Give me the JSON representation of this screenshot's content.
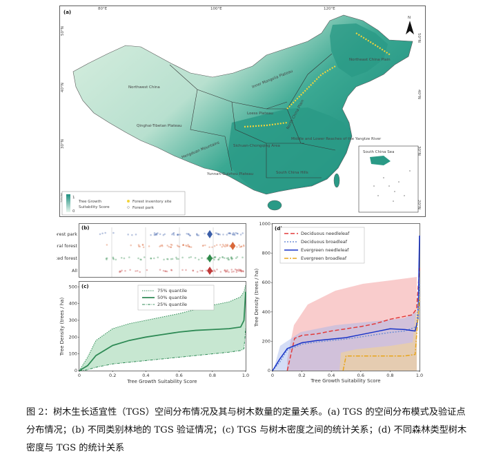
{
  "panel_a": {
    "label": "(a)",
    "lon_ticks": [
      "80°E",
      "100°E",
      "120°E"
    ],
    "lat_ticks": [
      "50°N",
      "40°N",
      "30°N",
      "20°N"
    ],
    "north": "N",
    "regions": [
      "Northwest China",
      "Inner Mongolia Plateau",
      "Northeast China Plain",
      "Loess Plateau",
      "North China Plain",
      "Qinghai-Tibetan Plateau",
      "Hengduan Mountains",
      "Sichuan-Chongqing Area",
      "Middle and Lower Reaches of the Yangtze River",
      "Yunnan-Guizhou Plateau",
      "South China Hills"
    ],
    "inset_label": "South China Sea",
    "legend": {
      "title_line1": "Tree Growth",
      "title_line2": "Suitability Score",
      "max": "1",
      "min": "0",
      "item1": "Forest inventory site",
      "item2": "Forest park"
    },
    "colors": {
      "low": "#d9efe0",
      "high": "#1f8f7f",
      "highlight": "#f2d43a"
    }
  },
  "panel_b": {
    "label": "(b)",
    "rows": [
      "Forest park",
      "Natural forest",
      "Planted forest",
      "All"
    ],
    "row_colors": [
      "#3b5ea8",
      "#d9683a",
      "#2f8a4a",
      "#c03a3a"
    ],
    "median_positions": [
      0.79,
      0.93,
      0.79,
      0.79
    ]
  },
  "chart_data": [
    {
      "type": "area",
      "label": "(c)",
      "xlabel": "Tree Growth Suitability Score",
      "ylabel": "Tree Density (trees / ha)",
      "xlim": [
        0,
        1
      ],
      "ylim": [
        0,
        530
      ],
      "x_ticks": [
        "0",
        "0.2",
        "0.4",
        "0.6",
        "0.8",
        "1.0"
      ],
      "y_ticks": [
        "0",
        "100",
        "200",
        "300",
        "400",
        "500"
      ],
      "x": [
        0,
        0.05,
        0.1,
        0.2,
        0.3,
        0.4,
        0.5,
        0.6,
        0.7,
        0.8,
        0.9,
        0.97,
        0.99,
        1.0
      ],
      "series": [
        {
          "name": "75% quantile",
          "values": [
            0,
            80,
            180,
            250,
            280,
            300,
            320,
            340,
            365,
            390,
            410,
            440,
            470,
            510
          ]
        },
        {
          "name": "50% quantile",
          "values": [
            0,
            30,
            90,
            150,
            180,
            200,
            215,
            230,
            240,
            245,
            250,
            260,
            300,
            470
          ]
        },
        {
          "name": "25% quantile",
          "values": [
            0,
            5,
            20,
            40,
            50,
            60,
            70,
            80,
            90,
            100,
            110,
            120,
            130,
            250
          ]
        }
      ],
      "legend": "top-right"
    },
    {
      "type": "line",
      "label": "(d)",
      "xlabel": "Tree Growth Suitability Score",
      "ylabel": "Tree Density (trees / ha)",
      "xlim": [
        0,
        1
      ],
      "ylim": [
        0,
        1000
      ],
      "x_ticks": [
        "0",
        "0.2",
        "0.4",
        "0.6",
        "0.8",
        "1.0"
      ],
      "y_ticks": [
        "0",
        "200",
        "400",
        "600",
        "800",
        "1000"
      ],
      "series": [
        {
          "name": "Deciduous needleleaf",
          "color": "#e23a3a",
          "dash": "6,3",
          "x": [
            0.1,
            0.15,
            0.2,
            0.3,
            0.4,
            0.5,
            0.6,
            0.7,
            0.8,
            0.9,
            0.95,
            0.98,
            1.0
          ],
          "values": [
            0,
            220,
            240,
            250,
            270,
            285,
            300,
            320,
            350,
            370,
            380,
            420,
            700
          ]
        },
        {
          "name": "Deciduous broadleaf",
          "color": "#6f8fd6",
          "dash": "2,2",
          "x": [
            0,
            0.05,
            0.1,
            0.2,
            0.3,
            0.4,
            0.5,
            0.6,
            0.7,
            0.8,
            0.9,
            0.98,
            1.0
          ],
          "values": [
            0,
            60,
            140,
            180,
            195,
            205,
            215,
            230,
            245,
            260,
            270,
            300,
            600
          ]
        },
        {
          "name": "Evergreen needleleaf",
          "color": "#1732c8",
          "dash": "",
          "x": [
            0,
            0.05,
            0.1,
            0.2,
            0.3,
            0.4,
            0.5,
            0.6,
            0.7,
            0.8,
            0.9,
            0.97,
            0.99,
            1.0
          ],
          "values": [
            0,
            80,
            150,
            190,
            205,
            215,
            225,
            245,
            265,
            285,
            280,
            270,
            350,
            920
          ]
        },
        {
          "name": "Evergreen broadleaf",
          "color": "#e8a51a",
          "dash": "6,2,2,2",
          "x": [
            0.48,
            0.5,
            0.55,
            0.6,
            0.7,
            0.8,
            0.9,
            0.97,
            1.0
          ],
          "values": [
            0,
            100,
            100,
            100,
            100,
            100,
            100,
            110,
            500
          ]
        }
      ],
      "legend": "top-left"
    }
  ],
  "caption": "图 2：树木生长适宜性（TGS）空间分布情况及其与树木数量的定量关系。(a) TGS 的空间分布模式及验证点分布情况；(b) 不同类别林地的 TGS 验证情况；(c) TGS 与树木密度之间的统计关系；(d) 不同森林类型树木密度与 TGS 的统计关系"
}
